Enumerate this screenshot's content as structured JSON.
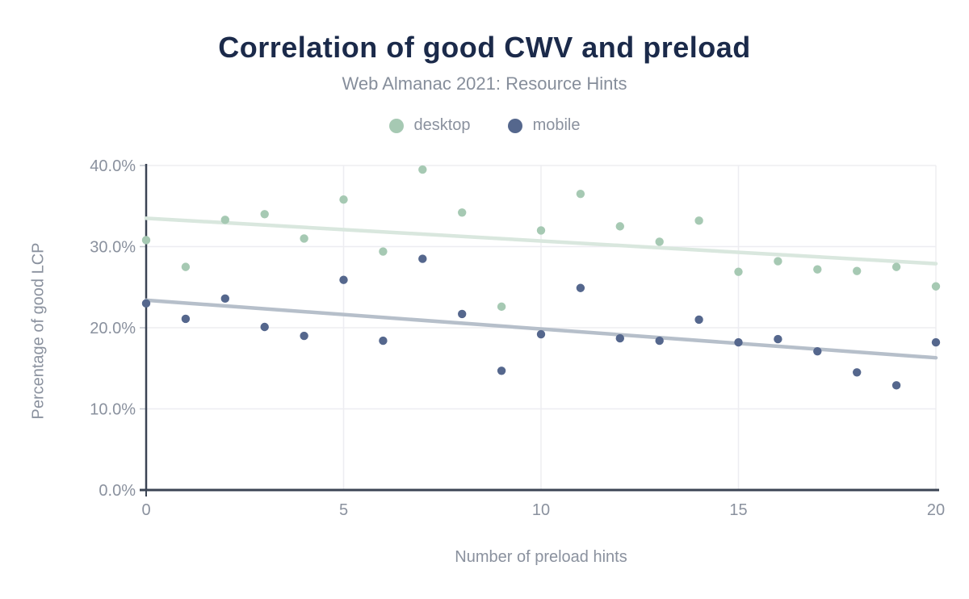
{
  "chart": {
    "title": "Correlation of good CWV and preload",
    "subtitle": "Web Almanac 2021: Resource Hints",
    "xlabel": "Number of preload hints",
    "ylabel": "Percentage of good LCP"
  },
  "colors": {
    "background": "#ffffff",
    "title": "#1b2a4a",
    "subtitle": "#868e9b",
    "axis_text": "#8a919e",
    "axis_line": "#3b4454",
    "grid": "#ededf1"
  },
  "chart_data": {
    "type": "scatter",
    "title": "Correlation of good CWV and preload",
    "subtitle": "Web Almanac 2021: Resource Hints",
    "xlabel": "Number of preload hints",
    "ylabel": "Percentage of good LCP",
    "xlim": [
      0,
      20
    ],
    "ylim": [
      0,
      40
    ],
    "grid": true,
    "legend_position": "top",
    "x": [
      0,
      1,
      2,
      3,
      4,
      5,
      6,
      7,
      8,
      9,
      10,
      11,
      12,
      13,
      14,
      15,
      16,
      17,
      18,
      19,
      20
    ],
    "x_ticks": [
      0,
      5,
      10,
      15,
      20
    ],
    "y_ticks": [
      {
        "value": 0,
        "label": "0.0%"
      },
      {
        "value": 10,
        "label": "10.0%"
      },
      {
        "value": 20,
        "label": "20.0%"
      },
      {
        "value": 30,
        "label": "30.0%"
      },
      {
        "value": 40,
        "label": "40.0%"
      }
    ],
    "series": [
      {
        "name": "desktop",
        "color": "#a6c9b3",
        "trend_color": "#d9e7de",
        "values": [
          30.8,
          27.5,
          33.3,
          34.0,
          31.0,
          35.8,
          29.4,
          39.5,
          34.2,
          22.6,
          32.0,
          36.5,
          32.5,
          30.6,
          33.2,
          26.9,
          28.2,
          27.2,
          27.0,
          27.5,
          25.1
        ],
        "trend": {
          "start": 33.5,
          "end": 27.9
        }
      },
      {
        "name": "mobile",
        "color": "#55678d",
        "trend_color": "#b6bfca",
        "values": [
          23.0,
          21.1,
          23.6,
          20.1,
          19.0,
          25.9,
          18.4,
          28.5,
          21.7,
          14.7,
          19.2,
          24.9,
          18.7,
          18.4,
          21.0,
          18.2,
          18.6,
          17.1,
          14.5,
          12.9,
          18.2
        ],
        "trend": {
          "start": 23.4,
          "end": 16.3
        }
      }
    ]
  }
}
